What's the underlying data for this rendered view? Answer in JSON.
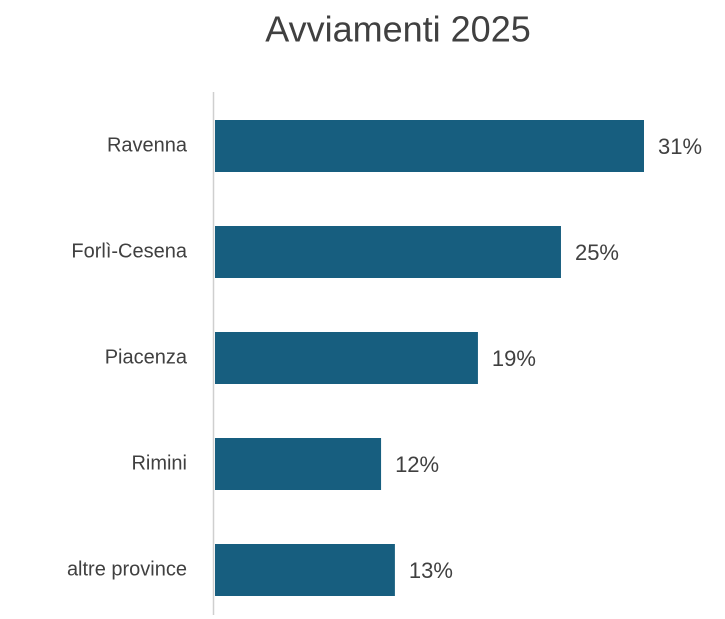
{
  "chart_data": {
    "type": "bar",
    "orientation": "horizontal",
    "title": "Avviamenti 2025",
    "categories": [
      "Ravenna",
      "Forlì-Cesena",
      "Piacenza",
      "Rimini",
      "altre province"
    ],
    "values": [
      31,
      25,
      19,
      12,
      13
    ],
    "value_labels": [
      "31%",
      "25%",
      "19%",
      "12%",
      "13%"
    ],
    "color": "#175e7f"
  }
}
